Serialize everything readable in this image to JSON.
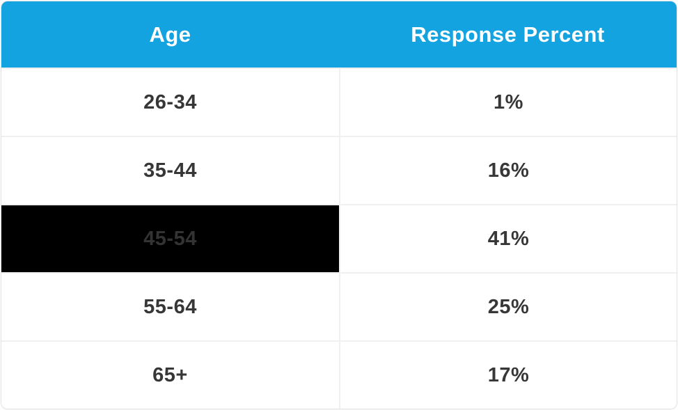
{
  "colors": {
    "header_bg": "#12a3e0",
    "header_text": "#ffffff",
    "cell_text": "#373737",
    "row_divider": "#f0f0f0",
    "card_outline": "#e4e4e4",
    "redacted_bg": "#000000",
    "redacted_text": "#333333"
  },
  "table": {
    "columns": [
      {
        "label": "Age"
      },
      {
        "label": "Response Percent"
      }
    ],
    "rows": [
      {
        "age": "26-34",
        "percent": "1%",
        "highlighted": false
      },
      {
        "age": "35-44",
        "percent": "16%",
        "highlighted": false
      },
      {
        "age": "45-54",
        "percent": "41%",
        "highlighted": true
      },
      {
        "age": "55-64",
        "percent": "25%",
        "highlighted": false
      },
      {
        "age": "65+",
        "percent": "17%",
        "highlighted": false
      }
    ]
  }
}
